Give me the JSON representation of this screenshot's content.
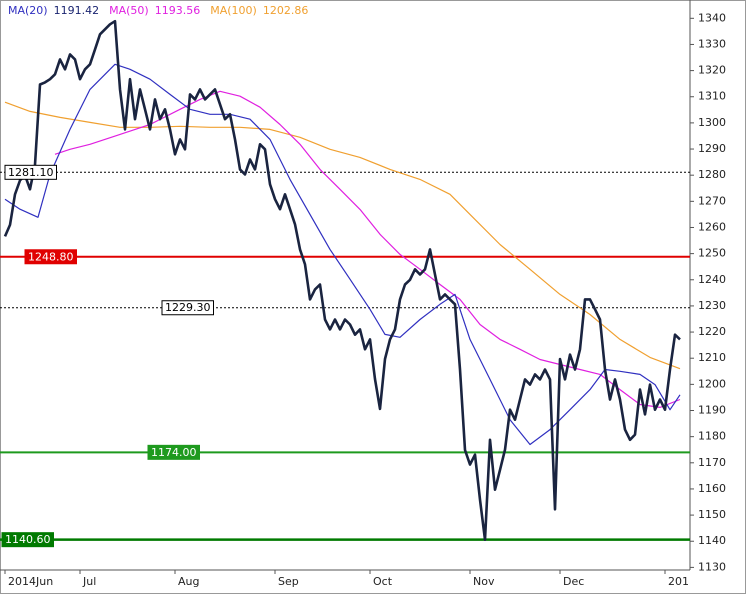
{
  "chart_data": {
    "type": "line",
    "xlim": [
      0,
      138
    ],
    "ylim": [
      1129,
      1347
    ],
    "xticks": [
      {
        "value": 1,
        "label": "2014Jun"
      },
      {
        "value": 16,
        "label": "Jul"
      },
      {
        "value": 35,
        "label": "Aug"
      },
      {
        "value": 55,
        "label": "Sep"
      },
      {
        "value": 74,
        "label": "Oct"
      },
      {
        "value": 94,
        "label": "Nov"
      },
      {
        "value": 112,
        "label": "Dec"
      },
      {
        "value": 133,
        "label": "201"
      }
    ],
    "yticks": [
      1130,
      1140,
      1150,
      1160,
      1170,
      1180,
      1190,
      1200,
      1210,
      1220,
      1230,
      1240,
      1250,
      1260,
      1270,
      1280,
      1290,
      1300,
      1310,
      1320,
      1330,
      1340
    ],
    "series": [
      {
        "color": "#1a2440",
        "x": [
          1,
          2,
          3,
          4,
          5,
          6,
          7,
          8,
          9,
          10,
          11,
          12,
          13,
          14,
          15,
          16,
          17,
          18,
          19,
          20,
          21,
          22,
          23,
          24,
          25,
          26,
          27,
          28,
          29,
          30,
          31,
          32,
          33,
          34,
          35,
          36,
          37,
          38,
          39,
          40,
          41,
          42,
          43,
          44,
          45,
          46,
          47,
          48,
          49,
          50,
          51,
          52,
          53,
          54,
          55,
          56,
          57,
          58,
          59,
          60,
          61,
          62,
          63,
          64,
          65,
          66,
          67,
          68,
          69,
          70,
          71,
          72,
          73,
          74,
          75,
          76,
          77,
          78,
          79,
          80,
          81,
          82,
          83,
          84,
          85,
          86,
          87,
          88,
          89,
          90,
          91,
          92,
          93,
          94,
          95,
          96,
          97,
          98,
          99,
          100,
          101,
          102,
          103,
          104,
          105,
          106,
          107,
          108,
          109,
          110,
          111,
          112,
          113,
          114,
          115,
          116,
          117,
          118,
          119,
          120,
          121,
          122,
          123,
          124,
          125,
          126,
          127,
          128,
          129,
          130,
          131,
          132,
          133,
          134,
          135,
          136
        ],
        "values": [
          1256.6,
          1261,
          1272.7,
          1278,
          1280,
          1274.6,
          1284,
          1314.7,
          1315.5,
          1316.7,
          1318.6,
          1324.3,
          1320.5,
          1326.2,
          1324.3,
          1316.7,
          1320.5,
          1322.4,
          1328.1,
          1333.9,
          1335.8,
          1337.7,
          1338.9,
          1312.8,
          1297.5,
          1316.7,
          1301.4,
          1312.8,
          1305.2,
          1297.5,
          1309,
          1301.4,
          1305.2,
          1297.5,
          1288,
          1293.7,
          1289.9,
          1310.9,
          1309,
          1312.8,
          1309,
          1310.9,
          1312.8,
          1307.1,
          1301.4,
          1303.3,
          1293.7,
          1282.2,
          1280.3,
          1286,
          1282.2,
          1291.8,
          1289.9,
          1276.5,
          1270.8,
          1267,
          1272.7,
          1267,
          1261.2,
          1251.6,
          1245.9,
          1232.5,
          1236.3,
          1238.2,
          1224.8,
          1221,
          1224.8,
          1221,
          1224.8,
          1222.9,
          1219,
          1221,
          1213.4,
          1217.2,
          1202,
          1190.6,
          1209.7,
          1217.2,
          1221,
          1232.5,
          1238.2,
          1240,
          1244,
          1242,
          1244,
          1251.6,
          1242,
          1232.5,
          1234.4,
          1232.5,
          1230.6,
          1205.7,
          1174.9,
          1169.3,
          1173.1,
          1155.9,
          1140.6,
          1178.8,
          1159.7,
          1167.3,
          1175,
          1190.3,
          1186.5,
          1194.2,
          1201.9,
          1199.9,
          1203.8,
          1201.9,
          1205.7,
          1201.9,
          1152.2,
          1209.7,
          1201.9,
          1211.4,
          1205.7,
          1213.4,
          1232.5,
          1232.5,
          1228.7,
          1224.8,
          1205.7,
          1194.2,
          1201.9,
          1194.2,
          1182.7,
          1178.8,
          1180.8,
          1198,
          1188.5,
          1199.9,
          1190.3,
          1194.2,
          1190.3,
          1205.7,
          1219,
          1217.2
        ]
      },
      {
        "name": "MA(20)",
        "last_value": 1191.42,
        "color": "#3030c0",
        "x": [
          1,
          4,
          7.6,
          10,
          14,
          18,
          23,
          26,
          30,
          34,
          38,
          42,
          46,
          50,
          54,
          58,
          62,
          66,
          70,
          74,
          77,
          80,
          84,
          88,
          91,
          94,
          98,
          102,
          106,
          110,
          114,
          118,
          121,
          124,
          128,
          131,
          134,
          136
        ],
        "values": [
          1270.8,
          1267,
          1263.9,
          1280.3,
          1297.5,
          1312.8,
          1322.4,
          1320.5,
          1316.7,
          1310.9,
          1305.2,
          1303.3,
          1303.3,
          1301.4,
          1293.7,
          1278.4,
          1265,
          1251.6,
          1240.2,
          1228.7,
          1219.1,
          1218,
          1224.8,
          1230.6,
          1234.4,
          1217.2,
          1201.9,
          1186.5,
          1177,
          1182.7,
          1190.3,
          1198,
          1205.7,
          1205,
          1203.8,
          1199.9,
          1190.3,
          1196
        ]
      },
      {
        "name": "MA(50)",
        "last_value": 1193.56,
        "color": "#e020e0",
        "x": [
          11,
          14,
          18,
          24,
          30,
          36,
          40,
          44,
          48,
          52,
          56,
          60,
          64,
          68,
          72,
          76,
          80,
          84,
          88,
          92,
          96,
          100,
          104,
          108,
          112,
          116,
          120,
          124,
          128,
          132,
          136
        ],
        "values": [
          1288,
          1289.9,
          1291.8,
          1295.6,
          1299.4,
          1305.2,
          1309,
          1312.1,
          1310.2,
          1306,
          1299.4,
          1291.8,
          1282.2,
          1274.6,
          1266.9,
          1257.4,
          1249.7,
          1244,
          1238.2,
          1232.5,
          1222.9,
          1217.2,
          1213.4,
          1209.5,
          1207.6,
          1205.7,
          1203.8,
          1198,
          1192.3,
          1191.2,
          1194.2
        ]
      },
      {
        "name": "MA(100)",
        "last_value": 1202.86,
        "color": "#f0a030",
        "x": [
          1,
          6,
          12,
          18,
          24,
          30,
          36,
          42,
          48,
          54,
          60,
          66,
          72,
          78,
          84,
          90,
          94,
          100,
          106,
          112,
          118,
          124,
          130,
          136
        ],
        "values": [
          1307.9,
          1304.4,
          1302.1,
          1300.2,
          1298.3,
          1298.3,
          1298.7,
          1298.3,
          1298.3,
          1297.5,
          1294.5,
          1289.9,
          1286.8,
          1282.2,
          1278.4,
          1272.7,
          1265,
          1253.5,
          1244,
          1234.4,
          1226.7,
          1217.2,
          1210.3,
          1206
        ]
      }
    ],
    "levels": [
      {
        "value": 1281.1,
        "label": "1281.10",
        "color": "#000000",
        "style": "dotted"
      },
      {
        "value": 1248.8,
        "label": "1248.80",
        "color": "#e00000",
        "style": "solid"
      },
      {
        "value": 1229.3,
        "label": "1229.30",
        "color": "#000000",
        "style": "dotted"
      },
      {
        "value": 1174,
        "label": "1174.00",
        "color": "#1e9a1e",
        "style": "solid"
      },
      {
        "value": 1140.6,
        "label": "1140.60",
        "color": "#007a00",
        "style": "solid"
      }
    ]
  }
}
